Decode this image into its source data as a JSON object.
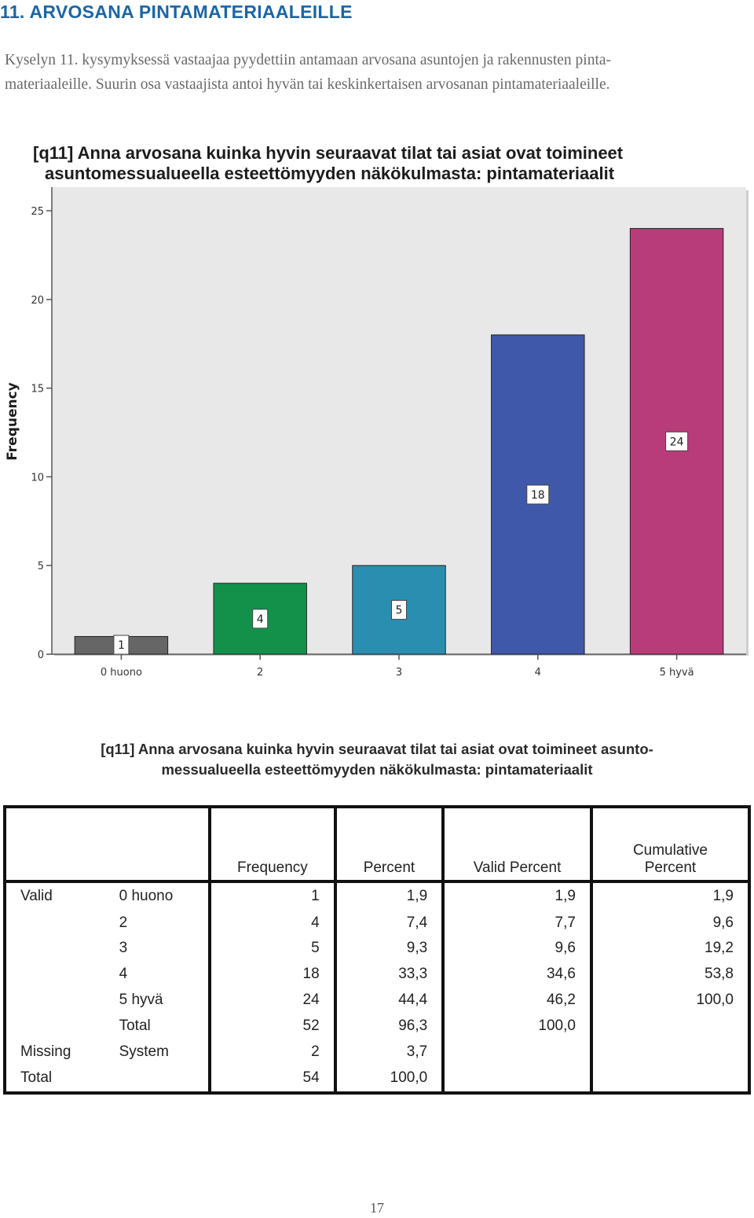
{
  "page": {
    "heading": "11. ARVOSANA PINTAMATERIAALEILLE",
    "intro_lines": [
      "Kyselyn 11. kysymyksessä vastaajaa pyydettiin antamaan arvosana asuntojen ja rakennusten pinta-",
      "materiaaleille. Suurin osa vastaajista antoi hyvän tai keskinkertaisen arvosanan pintamateriaaleille."
    ],
    "page_number": "17"
  },
  "chart_data": {
    "type": "bar",
    "title_lines": [
      "[q11] Anna arvosana kuinka hyvin seuraavat tilat tai asiat ovat toimineet",
      "asuntomessualueella esteettömyyden näkökulmasta: pintamateriaalit"
    ],
    "xlabel": "",
    "ylabel": "Frequency",
    "categories": [
      "0 huono",
      "2",
      "3",
      "4",
      "5 hyvä"
    ],
    "values": [
      1,
      4,
      5,
      18,
      24
    ],
    "data_labels": [
      "1",
      "4",
      "5",
      "18",
      "24"
    ],
    "colors": [
      "#666666",
      "#13914b",
      "#2a8eb0",
      "#3f58aa",
      "#b93c7a"
    ],
    "ylim": [
      0,
      25
    ],
    "yticks": [
      0,
      5,
      10,
      15,
      20,
      25
    ],
    "plot_background": "#e8e8e8",
    "grid": false
  },
  "table": {
    "title_lines": [
      "[q11] Anna arvosana kuinka hyvin seuraavat tilat tai asiat ovat toimineet asunto-",
      "messualueella esteettömyyden näkökulmasta: pintamateriaalit"
    ],
    "headers": {
      "frequency": "Frequency",
      "percent": "Percent",
      "valid_percent": "Valid Percent",
      "cumulative_line1": "Cumulative",
      "cumulative_line2": "Percent"
    },
    "rows": [
      {
        "group": "Valid",
        "label": "0 huono",
        "frequency": "1",
        "percent": "1,9",
        "valid_percent": "1,9",
        "cumulative": "1,9"
      },
      {
        "group": "",
        "label": "2",
        "frequency": "4",
        "percent": "7,4",
        "valid_percent": "7,7",
        "cumulative": "9,6"
      },
      {
        "group": "",
        "label": "3",
        "frequency": "5",
        "percent": "9,3",
        "valid_percent": "9,6",
        "cumulative": "19,2"
      },
      {
        "group": "",
        "label": "4",
        "frequency": "18",
        "percent": "33,3",
        "valid_percent": "34,6",
        "cumulative": "53,8"
      },
      {
        "group": "",
        "label": "5 hyvä",
        "frequency": "24",
        "percent": "44,4",
        "valid_percent": "46,2",
        "cumulative": "100,0"
      },
      {
        "group": "",
        "label": "Total",
        "frequency": "52",
        "percent": "96,3",
        "valid_percent": "100,0",
        "cumulative": ""
      },
      {
        "group": "Missing",
        "label": "System",
        "frequency": "2",
        "percent": "3,7",
        "valid_percent": "",
        "cumulative": ""
      },
      {
        "group": "Total",
        "label": "",
        "frequency": "54",
        "percent": "100,0",
        "valid_percent": "",
        "cumulative": ""
      }
    ]
  }
}
